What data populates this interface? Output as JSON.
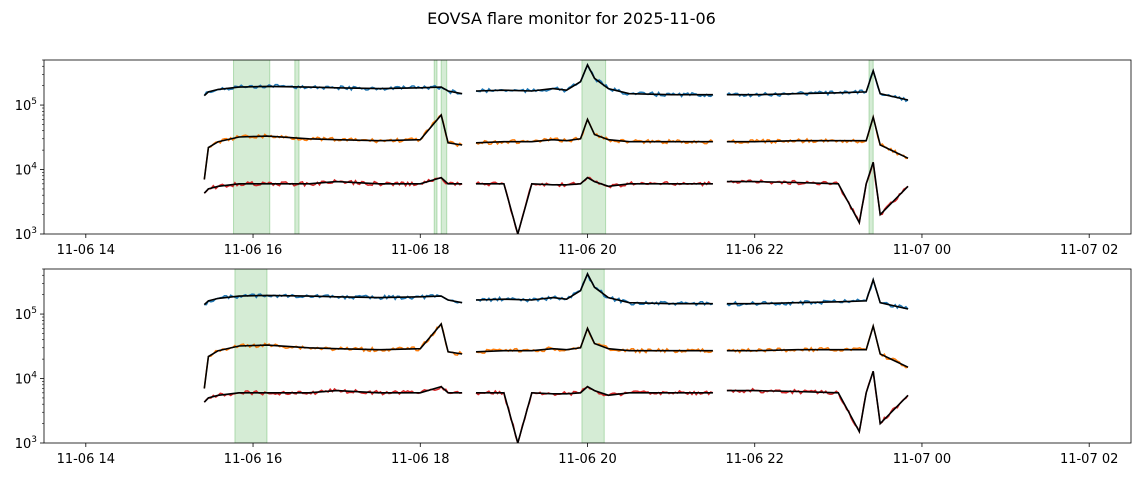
{
  "figure": {
    "title": "EOVSA flare monitor for 2025-11-06"
  },
  "chart_data": [
    {
      "type": "line",
      "yscale": "log",
      "ylim": [
        1000,
        500000
      ],
      "xlim": [
        "2025-11-06 13:30",
        "2025-11-07 02:30"
      ],
      "grid": false,
      "xticks": [
        "11-06 14",
        "11-06 16",
        "11-06 18",
        "11-06 20",
        "11-06 22",
        "11-07 00",
        "11-07 02"
      ],
      "yticks": [
        {
          "base": "10",
          "exp": "3"
        },
        {
          "base": "10",
          "exp": "4"
        },
        {
          "base": "10",
          "exp": "5"
        }
      ],
      "flare_intervals": [
        [
          "2025-11-06 15:46",
          "2025-11-06 16:12"
        ],
        [
          "2025-11-06 16:30",
          "2025-11-06 16:33"
        ],
        [
          "2025-11-06 18:10",
          "2025-11-06 18:12"
        ],
        [
          "2025-11-06 18:15",
          "2025-11-06 18:19"
        ],
        [
          "2025-11-06 19:56",
          "2025-11-06 20:13"
        ],
        [
          "2025-11-06 23:22",
          "2025-11-06 23:25"
        ]
      ],
      "series": [
        {
          "color": "#1f77b4",
          "segments": [
            {
              "x": [
                "15:25",
                "15:28",
                "15:35",
                "15:50",
                "16:10",
                "16:40",
                "17:00",
                "17:30",
                "18:00",
                "18:15",
                "18:20",
                "18:30"
              ],
              "y": [
                140000,
                160000,
                175000,
                190000,
                195000,
                190000,
                185000,
                180000,
                185000,
                190000,
                165000,
                150000
              ]
            },
            {
              "x": [
                "18:40",
                "19:00",
                "19:20",
                "19:35",
                "19:45",
                "19:55",
                "20:00",
                "20:05",
                "20:15",
                "20:30",
                "21:00",
                "21:30"
              ],
              "y": [
                165000,
                170000,
                165000,
                180000,
                170000,
                230000,
                420000,
                260000,
                180000,
                150000,
                145000,
                145000
              ]
            },
            {
              "x": [
                "21:40",
                "22:00",
                "22:30",
                "23:00",
                "23:20",
                "23:25",
                "23:30",
                "23:50"
              ],
              "y": [
                145000,
                145000,
                150000,
                155000,
                160000,
                340000,
                150000,
                120000
              ]
            }
          ]
        },
        {
          "color": "#ff7f0e",
          "segments": [
            {
              "x": [
                "15:25",
                "15:28",
                "15:35",
                "15:50",
                "16:10",
                "16:40",
                "17:00",
                "17:30",
                "18:00",
                "18:15",
                "18:20",
                "18:30"
              ],
              "y": [
                7000,
                22000,
                27000,
                32000,
                33000,
                30000,
                29000,
                28000,
                29000,
                70000,
                26000,
                24000
              ]
            },
            {
              "x": [
                "18:40",
                "19:00",
                "19:20",
                "19:35",
                "19:45",
                "19:55",
                "20:00",
                "20:05",
                "20:15",
                "20:30",
                "21:00",
                "21:30"
              ],
              "y": [
                26000,
                27000,
                27000,
                29000,
                28000,
                30000,
                60000,
                35000,
                29000,
                27000,
                27000,
                27000
              ]
            },
            {
              "x": [
                "21:40",
                "22:00",
                "22:30",
                "23:00",
                "23:20",
                "23:25",
                "23:30",
                "23:50"
              ],
              "y": [
                27000,
                27000,
                28000,
                28000,
                28000,
                65000,
                24000,
                15000
              ]
            }
          ]
        },
        {
          "color": "#d62728",
          "segments": [
            {
              "x": [
                "15:25",
                "15:28",
                "15:35",
                "15:50",
                "16:10",
                "16:40",
                "17:00",
                "17:30",
                "18:00",
                "18:15",
                "18:20",
                "18:30"
              ],
              "y": [
                4300,
                5000,
                5500,
                6000,
                6000,
                6000,
                6500,
                6000,
                6000,
                7500,
                6000,
                6000
              ]
            },
            {
              "x": [
                "18:40",
                "19:00",
                "19:10",
                "19:20",
                "19:35",
                "19:45",
                "19:55",
                "20:00",
                "20:05",
                "20:15",
                "20:30",
                "21:00",
                "21:30"
              ],
              "y": [
                6000,
                6000,
                1000,
                6000,
                5800,
                5800,
                6000,
                7500,
                6500,
                5500,
                6000,
                6000,
                6000
              ]
            },
            {
              "x": [
                "21:40",
                "22:00",
                "22:30",
                "23:00",
                "23:15",
                "23:20",
                "23:25",
                "23:30",
                "23:50"
              ],
              "y": [
                6500,
                6500,
                6300,
                6000,
                1500,
                6000,
                13000,
                2000,
                5500
              ]
            }
          ]
        }
      ]
    },
    {
      "type": "line",
      "yscale": "log",
      "ylim": [
        1000,
        500000
      ],
      "xlim": [
        "2025-11-06 13:30",
        "2025-11-07 02:30"
      ],
      "grid": false,
      "xticks": [
        "11-06 14",
        "11-06 16",
        "11-06 18",
        "11-06 20",
        "11-06 22",
        "11-07 00",
        "11-07 02"
      ],
      "yticks": [
        {
          "base": "10",
          "exp": "3"
        },
        {
          "base": "10",
          "exp": "4"
        },
        {
          "base": "10",
          "exp": "5"
        }
      ],
      "flare_intervals": [
        [
          "2025-11-06 15:47",
          "2025-11-06 16:10"
        ],
        [
          "2025-11-06 19:56",
          "2025-11-06 20:12"
        ]
      ],
      "series": [
        {
          "color": "#1f77b4",
          "segments": [
            {
              "x": [
                "15:25",
                "15:28",
                "15:35",
                "15:50",
                "16:10",
                "16:40",
                "17:00",
                "17:30",
                "18:00",
                "18:15",
                "18:20",
                "18:30"
              ],
              "y": [
                140000,
                160000,
                175000,
                190000,
                195000,
                190000,
                185000,
                180000,
                185000,
                190000,
                165000,
                150000
              ]
            },
            {
              "x": [
                "18:40",
                "19:00",
                "19:20",
                "19:35",
                "19:45",
                "19:55",
                "20:00",
                "20:05",
                "20:15",
                "20:30",
                "21:00",
                "21:30"
              ],
              "y": [
                165000,
                170000,
                165000,
                180000,
                170000,
                230000,
                420000,
                260000,
                180000,
                150000,
                145000,
                145000
              ]
            },
            {
              "x": [
                "21:40",
                "22:00",
                "22:30",
                "23:00",
                "23:20",
                "23:25",
                "23:30",
                "23:50"
              ],
              "y": [
                145000,
                145000,
                150000,
                155000,
                160000,
                340000,
                150000,
                120000
              ]
            }
          ]
        },
        {
          "color": "#ff7f0e",
          "segments": [
            {
              "x": [
                "15:25",
                "15:28",
                "15:35",
                "15:50",
                "16:10",
                "16:40",
                "17:00",
                "17:30",
                "18:00",
                "18:15",
                "18:20",
                "18:30"
              ],
              "y": [
                7000,
                22000,
                27000,
                32000,
                33000,
                30000,
                29000,
                28000,
                29000,
                70000,
                26000,
                24000
              ]
            },
            {
              "x": [
                "18:40",
                "19:00",
                "19:20",
                "19:35",
                "19:45",
                "19:55",
                "20:00",
                "20:05",
                "20:15",
                "20:30",
                "21:00",
                "21:30"
              ],
              "y": [
                26000,
                27000,
                27000,
                29000,
                28000,
                30000,
                60000,
                35000,
                29000,
                27000,
                27000,
                27000
              ]
            },
            {
              "x": [
                "21:40",
                "22:00",
                "22:30",
                "23:00",
                "23:20",
                "23:25",
                "23:30",
                "23:50"
              ],
              "y": [
                27000,
                27000,
                28000,
                28000,
                28000,
                65000,
                24000,
                15000
              ]
            }
          ]
        },
        {
          "color": "#d62728",
          "segments": [
            {
              "x": [
                "15:25",
                "15:28",
                "15:35",
                "15:50",
                "16:10",
                "16:40",
                "17:00",
                "17:30",
                "18:00",
                "18:15",
                "18:20",
                "18:30"
              ],
              "y": [
                4300,
                5000,
                5500,
                6000,
                6000,
                6000,
                6500,
                6000,
                6000,
                7500,
                6000,
                6000
              ]
            },
            {
              "x": [
                "18:40",
                "19:00",
                "19:10",
                "19:20",
                "19:35",
                "19:45",
                "19:55",
                "20:00",
                "20:05",
                "20:15",
                "20:30",
                "21:00",
                "21:30"
              ],
              "y": [
                6000,
                6000,
                1000,
                6000,
                5800,
                5800,
                6000,
                7500,
                6500,
                5500,
                6000,
                6000,
                6000
              ]
            },
            {
              "x": [
                "21:40",
                "22:00",
                "22:30",
                "23:00",
                "23:15",
                "23:20",
                "23:25",
                "23:30",
                "23:50"
              ],
              "y": [
                6500,
                6500,
                6300,
                6000,
                1500,
                6000,
                13000,
                2000,
                5500
              ]
            }
          ]
        }
      ]
    }
  ]
}
